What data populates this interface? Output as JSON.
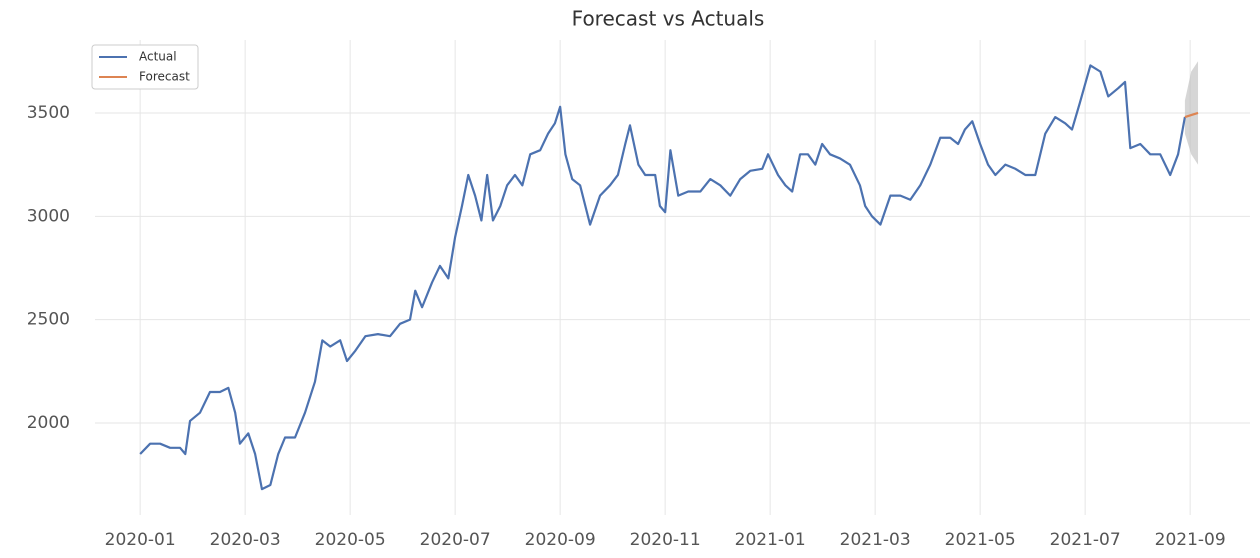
{
  "chart_data": {
    "type": "line",
    "title": "Forecast vs Actuals",
    "series": [
      {
        "name": "Actual",
        "color": "#4c72b0",
        "x": [
          0,
          0.19,
          0.38,
          0.57,
          0.76,
          0.86,
          0.95,
          1.14,
          1.33,
          1.52,
          1.68,
          1.81,
          1.9,
          2.06,
          2.19,
          2.32,
          2.48,
          2.63,
          2.76,
          2.95,
          3.14,
          3.33,
          3.47,
          3.62,
          3.81,
          3.94,
          4.1,
          4.29,
          4.53,
          4.76,
          4.95,
          5.14,
          5.24,
          5.37,
          5.56,
          5.71,
          5.87,
          6.0,
          6.13,
          6.25,
          6.38,
          6.5,
          6.61,
          6.72,
          6.86,
          6.99,
          7.14,
          7.28,
          7.43,
          7.62,
          7.77,
          7.9,
          8.0,
          8.1,
          8.23,
          8.38,
          8.57,
          8.76,
          8.95,
          9.1,
          9.24,
          9.33,
          9.49,
          9.62,
          9.81,
          9.9,
          10.0,
          10.1,
          10.25,
          10.44,
          10.67,
          10.86,
          11.05,
          11.24,
          11.43,
          11.62,
          11.85,
          11.96,
          12.15,
          12.29,
          12.42,
          12.57,
          12.72,
          12.86,
          12.99,
          13.14,
          13.33,
          13.52,
          13.71,
          13.81,
          13.94,
          14.1,
          14.29,
          14.48,
          14.67,
          14.86,
          15.05,
          15.24,
          15.43,
          15.58,
          15.71,
          15.85,
          16.0,
          16.15,
          16.29,
          16.48,
          16.67,
          16.86,
          17.05,
          17.24,
          17.43,
          17.62,
          17.75,
          17.9,
          18.1,
          18.29,
          18.44,
          18.63,
          18.76,
          18.86,
          19.05,
          19.24,
          19.43,
          19.62,
          19.77,
          19.9
        ],
        "values": [
          1850,
          1900,
          1900,
          1880,
          1880,
          1850,
          2010,
          2050,
          2150,
          2150,
          2170,
          2050,
          1900,
          1950,
          1850,
          1680,
          1700,
          1850,
          1930,
          1930,
          2050,
          2200,
          2400,
          2370,
          2400,
          2300,
          2350,
          2420,
          2430,
          2420,
          2480,
          2500,
          2640,
          2560,
          2680,
          2760,
          2700,
          2900,
          3050,
          3200,
          3100,
          2980,
          3200,
          2980,
          3050,
          3150,
          3200,
          3150,
          3300,
          3320,
          3400,
          3450,
          3530,
          3300,
          3180,
          3150,
          2960,
          3100,
          3150,
          3200,
          3350,
          3440,
          3250,
          3200,
          3200,
          3050,
          3020,
          3320,
          3100,
          3120,
          3120,
          3180,
          3150,
          3100,
          3180,
          3220,
          3230,
          3300,
          3200,
          3150,
          3120,
          3300,
          3300,
          3250,
          3350,
          3300,
          3280,
          3250,
          3150,
          3050,
          3000,
          2960,
          3100,
          3100,
          3080,
          3150,
          3250,
          3380,
          3380,
          3350,
          3420,
          3460,
          3350,
          3250,
          3200,
          3250,
          3230,
          3200,
          3200,
          3400,
          3480,
          3450,
          3420,
          3550,
          3730,
          3700,
          3580,
          3620,
          3650,
          3330,
          3350,
          3300,
          3300,
          3200,
          3300,
          3480
        ]
      },
      {
        "name": "Forecast",
        "color": "#dd8452",
        "x": [
          19.9,
          20.02,
          20.15
        ],
        "values": [
          3480,
          3490,
          3500
        ]
      }
    ],
    "interval": {
      "color": "#bbbbbb",
      "x": [
        19.9,
        20.02,
        20.15
      ],
      "lower": [
        3400,
        3300,
        3250
      ],
      "upper": [
        3560,
        3700,
        3750
      ]
    },
    "xlim": [
      -0.86,
      21.14
    ],
    "ylim": [
      1555,
      3853
    ],
    "xticks": [
      {
        "value": 0,
        "label": "2020-01"
      },
      {
        "value": 2,
        "label": "2020-03"
      },
      {
        "value": 4,
        "label": "2020-05"
      },
      {
        "value": 6,
        "label": "2020-07"
      },
      {
        "value": 8,
        "label": "2020-09"
      },
      {
        "value": 10,
        "label": "2020-11"
      },
      {
        "value": 12,
        "label": "2021-01"
      },
      {
        "value": 14,
        "label": "2021-03"
      },
      {
        "value": 16,
        "label": "2021-05"
      },
      {
        "value": 18,
        "label": "2021-07"
      },
      {
        "value": 20,
        "label": "2021-09"
      }
    ],
    "yticks": [
      2000,
      2500,
      3000,
      3500
    ],
    "grid": true,
    "legend": "upper left"
  }
}
